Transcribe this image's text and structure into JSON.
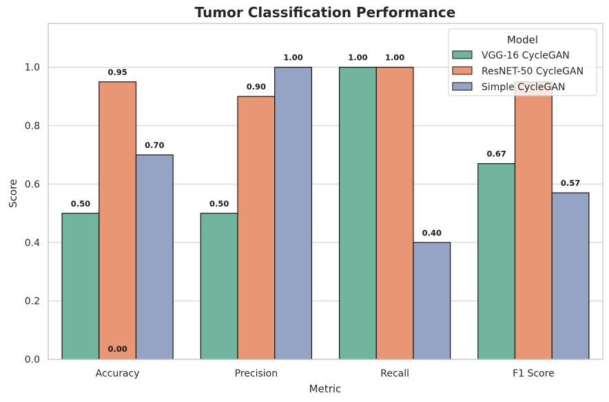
{
  "chart_data": {
    "type": "bar",
    "title": "Tumor Classification Performance",
    "xlabel": "Metric",
    "ylabel": "Score",
    "categories": [
      "Accuracy",
      "Precision",
      "Recall",
      "F1 Score"
    ],
    "series": [
      {
        "name": "VGG-16 CycleGAN",
        "color": "#72b59e",
        "values": [
          0.5,
          0.5,
          1.0,
          0.67
        ],
        "labels": [
          "0.50",
          "0.50",
          "1.00",
          "0.67"
        ]
      },
      {
        "name": "ResNET-50 CycleGAN",
        "color": "#e99675",
        "values": [
          0.95,
          0.9,
          1.0,
          0.95
        ],
        "labels": [
          "0.95",
          "0.90",
          "1.00",
          ""
        ]
      },
      {
        "name": "Simple CycleGAN",
        "color": "#95a4c4",
        "values": [
          0.7,
          1.0,
          0.4,
          0.57
        ],
        "labels": [
          "0.70",
          "1.00",
          "0.40",
          "0.57"
        ]
      }
    ],
    "extra_annotations": [
      {
        "text": "0.00",
        "category": "Accuracy",
        "y": 0.0
      }
    ],
    "ylim": [
      0,
      1.15
    ],
    "yticks": [
      "0.0",
      "0.2",
      "0.4",
      "0.6",
      "0.8",
      "1.0"
    ],
    "grid": "horizontal",
    "legend": {
      "title": "Model",
      "placement": "top-right"
    }
  }
}
